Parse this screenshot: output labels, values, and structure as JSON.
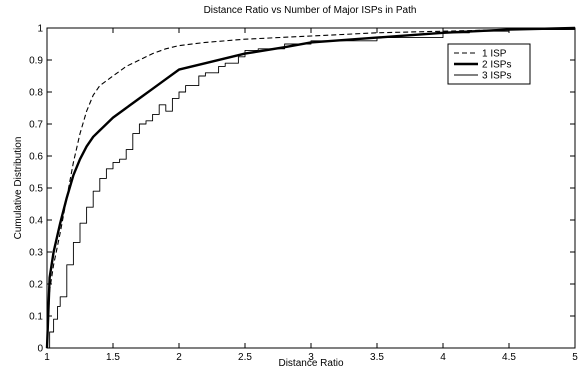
{
  "chart_data": {
    "type": "line",
    "title": "Distance Ratio vs Number of Major ISPs in Path",
    "xlabel": "Distance Ratio",
    "ylabel": "Cumulative Distribution",
    "xlim": [
      1,
      5
    ],
    "ylim": [
      0,
      1
    ],
    "xticks": [
      1,
      1.5,
      2,
      2.5,
      3,
      3.5,
      4,
      4.5,
      5
    ],
    "xtick_labels": [
      "1",
      "1.5",
      "2",
      "2.5",
      "3",
      "3.5",
      "4",
      "4.5",
      "5"
    ],
    "yticks": [
      0,
      0.1,
      0.2,
      0.3,
      0.4,
      0.5,
      0.6,
      0.7,
      0.8,
      0.9,
      1
    ],
    "ytick_labels": [
      "0",
      "0.1",
      "0.2",
      "0.3",
      "0.4",
      "0.5",
      "0.6",
      "0.7",
      "0.8",
      "0.9",
      "1"
    ],
    "grid": false,
    "legend_position": "top-right",
    "series": [
      {
        "name": "1 ISP",
        "style": "dashed",
        "color": "#000000",
        "x": [
          1.0,
          1.02,
          1.05,
          1.1,
          1.15,
          1.2,
          1.25,
          1.3,
          1.35,
          1.4,
          1.5,
          1.6,
          1.7,
          1.8,
          1.9,
          2.0,
          2.2,
          2.5,
          3.0,
          3.5,
          4.0,
          4.5,
          5.0
        ],
        "y": [
          0.0,
          0.18,
          0.26,
          0.36,
          0.47,
          0.58,
          0.67,
          0.74,
          0.79,
          0.82,
          0.85,
          0.88,
          0.9,
          0.92,
          0.935,
          0.945,
          0.955,
          0.965,
          0.975,
          0.985,
          0.99,
          0.995,
          1.0
        ]
      },
      {
        "name": "2 ISPs",
        "style": "thick",
        "color": "#000000",
        "x": [
          1.0,
          1.02,
          1.05,
          1.1,
          1.15,
          1.2,
          1.25,
          1.3,
          1.35,
          1.4,
          1.5,
          1.6,
          1.7,
          1.8,
          1.9,
          2.0,
          2.2,
          2.5,
          2.8,
          3.0,
          3.5,
          4.0,
          4.5,
          5.0
        ],
        "y": [
          0.0,
          0.22,
          0.3,
          0.39,
          0.47,
          0.54,
          0.59,
          0.63,
          0.66,
          0.68,
          0.72,
          0.75,
          0.78,
          0.81,
          0.84,
          0.87,
          0.89,
          0.92,
          0.94,
          0.955,
          0.97,
          0.985,
          0.995,
          1.0
        ]
      },
      {
        "name": "3 ISPs",
        "style": "thin",
        "color": "#000000",
        "x": [
          1.0,
          1.02,
          1.05,
          1.08,
          1.1,
          1.15,
          1.2,
          1.25,
          1.3,
          1.35,
          1.4,
          1.45,
          1.5,
          1.55,
          1.6,
          1.65,
          1.7,
          1.75,
          1.8,
          1.85,
          1.9,
          1.95,
          2.0,
          2.05,
          2.1,
          2.15,
          2.2,
          2.25,
          2.3,
          2.35,
          2.4,
          2.45,
          2.5,
          2.6,
          2.8,
          3.0,
          3.5,
          4.0,
          4.2,
          4.5,
          5.0
        ],
        "y": [
          0.0,
          0.05,
          0.09,
          0.13,
          0.16,
          0.26,
          0.33,
          0.39,
          0.44,
          0.49,
          0.53,
          0.56,
          0.58,
          0.59,
          0.62,
          0.67,
          0.7,
          0.71,
          0.73,
          0.76,
          0.74,
          0.78,
          0.8,
          0.82,
          0.82,
          0.85,
          0.86,
          0.86,
          0.88,
          0.89,
          0.89,
          0.91,
          0.93,
          0.935,
          0.95,
          0.96,
          0.97,
          0.985,
          0.99,
          0.995,
          1.0
        ]
      }
    ]
  }
}
